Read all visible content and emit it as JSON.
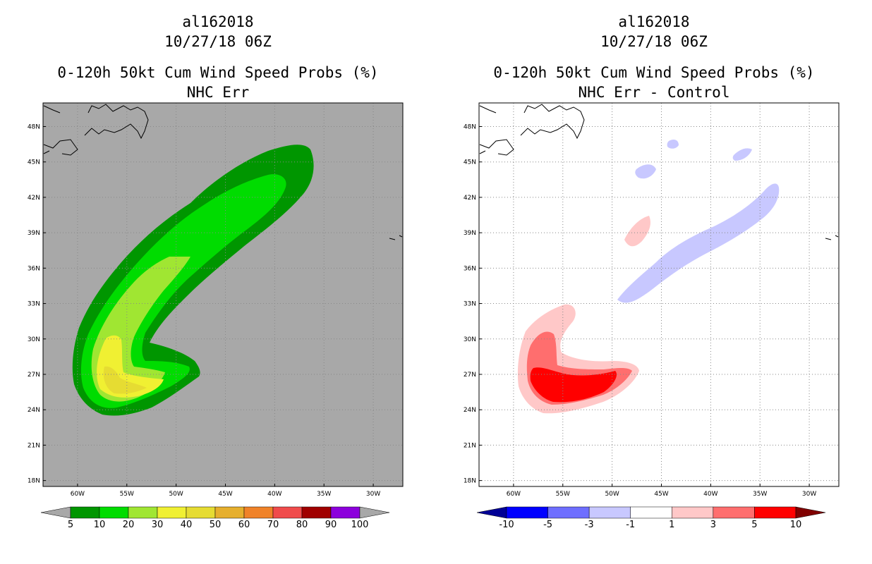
{
  "panels": [
    {
      "id": "left",
      "title_line1": "al162018",
      "title_line2": "10/27/18 06Z",
      "title_line3": "0-120h 50kt Cum Wind Speed Probs (%)",
      "title_line4": "NHC Err",
      "background": "#a8a8a8",
      "colorbar": {
        "labels": [
          "5",
          "10",
          "20",
          "30",
          "40",
          "50",
          "60",
          "70",
          "80",
          "90",
          "100"
        ],
        "colors": [
          "#a8a8a8",
          "#009600",
          "#00dc00",
          "#a0e632",
          "#f0f032",
          "#e6dc32",
          "#e6af2d",
          "#f08228",
          "#f04b4b",
          "#a00000",
          "#8c00dc",
          "#a8a8a8"
        ]
      }
    },
    {
      "id": "right",
      "title_line1": "al162018",
      "title_line2": "10/27/18 06Z",
      "title_line3": "0-120h 50kt Cum Wind Speed Probs (%)",
      "title_line4": "NHC Err - Control",
      "background": "#ffffff",
      "colorbar": {
        "labels": [
          "-10",
          "-5",
          "-3",
          "-1",
          "1",
          "3",
          "5",
          "10"
        ],
        "colors": [
          "#000096",
          "#0000ff",
          "#6e6eff",
          "#c8c8ff",
          "#ffffff",
          "#ffc8c8",
          "#ff6e6e",
          "#ff0000",
          "#800000"
        ]
      }
    }
  ],
  "chart_data": [
    {
      "type": "heatmap",
      "title": "0-120h 50kt Cum Wind Speed Probs (%) NHC Err",
      "storm": "al162018",
      "datetime": "10/27/18 06Z",
      "x_ticks": [
        "60W",
        "55W",
        "50W",
        "45W",
        "40W",
        "35W",
        "30W"
      ],
      "y_ticks": [
        "18N",
        "21N",
        "24N",
        "27N",
        "30N",
        "33N",
        "36N",
        "39N",
        "42N",
        "45N",
        "48N"
      ],
      "xlim_lon": [
        -63.5,
        -27.0
      ],
      "ylim_lat": [
        17.5,
        50.0
      ],
      "contour_levels": [
        5,
        10,
        20,
        30,
        40,
        50,
        60,
        70,
        80,
        90,
        100
      ],
      "max_probability_region": {
        "lat": [
          25,
          28
        ],
        "lon": [
          -58,
          -53
        ],
        "range": "30-40"
      }
    },
    {
      "type": "heatmap",
      "title": "0-120h 50kt Cum Wind Speed Probs (%) NHC Err - Control",
      "storm": "al162018",
      "datetime": "10/27/18 06Z",
      "x_ticks": [
        "60W",
        "55W",
        "50W",
        "45W",
        "40W",
        "35W",
        "30W"
      ],
      "y_ticks": [
        "18N",
        "21N",
        "24N",
        "27N",
        "30N",
        "33N",
        "36N",
        "39N",
        "42N",
        "45N",
        "48N"
      ],
      "xlim_lon": [
        -63.5,
        -27.0
      ],
      "ylim_lat": [
        17.5,
        50.0
      ],
      "contour_levels": [
        -10,
        -5,
        -3,
        -1,
        1,
        3,
        5,
        10
      ],
      "max_difference_region": {
        "lat": [
          25,
          27.5
        ],
        "lon": [
          -58,
          -50
        ],
        "range": "5-10"
      }
    }
  ]
}
